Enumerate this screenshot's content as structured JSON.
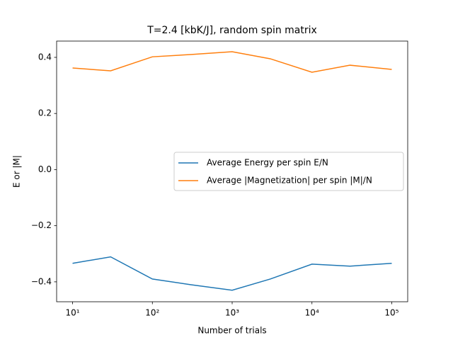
{
  "chart_data": {
    "type": "line",
    "title": "T=2.4 [kbK/J], random spin matrix",
    "xlabel": "Number of trials",
    "ylabel": "E or |M|",
    "xscale": "log",
    "x": [
      10,
      30,
      100,
      300,
      1000,
      3000,
      10000,
      30000,
      100000
    ],
    "series": [
      {
        "name": "Average Energy per spin E/N",
        "color": "#1f77b4",
        "values": [
          -0.334,
          -0.311,
          -0.39,
          -0.41,
          -0.43,
          -0.39,
          -0.337,
          -0.344,
          -0.334
        ]
      },
      {
        "name": "Average |Magnetization| per spin |M|/N",
        "color": "#ff7f0e",
        "values": [
          0.362,
          0.352,
          0.402,
          0.41,
          0.42,
          0.395,
          0.347,
          0.372,
          0.357
        ]
      }
    ],
    "xlim": [
      6.31,
      158489
    ],
    "xticks": [
      {
        "value": 10,
        "label": "10¹"
      },
      {
        "value": 100,
        "label": "10²"
      },
      {
        "value": 1000,
        "label": "10³"
      },
      {
        "value": 10000,
        "label": "10⁴"
      },
      {
        "value": 100000,
        "label": "10⁵"
      }
    ],
    "ylim": [
      -0.471,
      0.458
    ],
    "yticks": [
      {
        "value": -0.4,
        "label": "−0.4"
      },
      {
        "value": -0.2,
        "label": "−0.2"
      },
      {
        "value": 0,
        "label": "0.0"
      },
      0.2,
      0.4
    ],
    "grid": false,
    "legend": "center right"
  }
}
